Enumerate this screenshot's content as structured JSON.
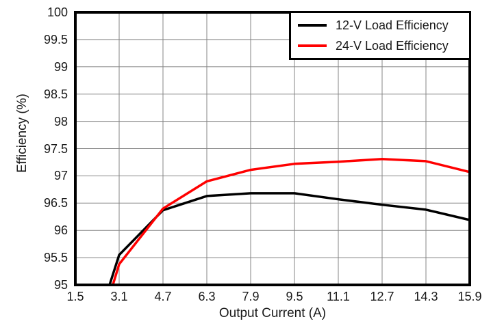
{
  "figure": {
    "background": "#ffffff"
  },
  "chart_data": {
    "type": "line",
    "title": "",
    "xlabel": "Output Current (A)",
    "ylabel": "Efficiency (%)",
    "xlim": [
      1.5,
      15.9
    ],
    "ylim": [
      95,
      100
    ],
    "x_ticks": [
      1.5,
      3.1,
      4.7,
      6.3,
      7.9,
      9.5,
      11.1,
      12.7,
      14.3,
      15.9
    ],
    "x_tick_labels": [
      "1.5",
      "3.1",
      "4.7",
      "6.3",
      "7.9",
      "9.5",
      "11.1",
      "12.7",
      "14.3",
      "15.9"
    ],
    "y_ticks": [
      95,
      95.5,
      96,
      96.5,
      97,
      97.5,
      98,
      98.5,
      99,
      99.5,
      100
    ],
    "y_tick_labels": [
      "95",
      "95.5",
      "96",
      "96.5",
      "97",
      "97.5",
      "98",
      "98.5",
      "99",
      "99.5",
      "100"
    ],
    "grid": true,
    "grid_color": "#848484",
    "frame_color": "#000000",
    "legend_position": "top-right",
    "series": [
      {
        "name": "12-V Load Efficiency",
        "color": "#000000",
        "points": [
          [
            2.75,
            95.0
          ],
          [
            3.1,
            95.55
          ],
          [
            4.7,
            96.37
          ],
          [
            6.3,
            96.63
          ],
          [
            7.9,
            96.68
          ],
          [
            9.5,
            96.68
          ],
          [
            11.1,
            96.57
          ],
          [
            12.7,
            96.47
          ],
          [
            14.3,
            96.38
          ],
          [
            15.9,
            96.19
          ]
        ]
      },
      {
        "name": "24-V Load Efficiency",
        "color": "#ff0000",
        "points": [
          [
            2.87,
            95.0
          ],
          [
            3.1,
            95.38
          ],
          [
            4.7,
            96.4
          ],
          [
            6.3,
            96.9
          ],
          [
            7.9,
            97.11
          ],
          [
            9.5,
            97.22
          ],
          [
            11.1,
            97.26
          ],
          [
            12.7,
            97.31
          ],
          [
            14.3,
            97.27
          ],
          [
            15.9,
            97.07
          ]
        ]
      }
    ]
  }
}
